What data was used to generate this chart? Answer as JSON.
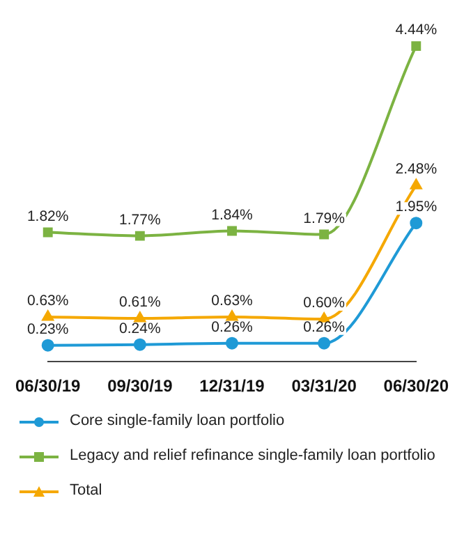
{
  "chart_data": {
    "type": "line",
    "categories": [
      "06/30/19",
      "09/30/19",
      "12/31/19",
      "03/31/20",
      "06/30/20"
    ],
    "series": [
      {
        "name": "Core single-family loan portfolio",
        "color": "#1f9ad6",
        "marker": "circle",
        "values": [
          0.23,
          0.24,
          0.26,
          0.26,
          1.95
        ],
        "value_labels": [
          "0.23%",
          "0.24%",
          "0.26%",
          "0.26%",
          "1.95%"
        ]
      },
      {
        "name": "Legacy and relief refinance single-family loan portfolio",
        "color": "#7cb342",
        "marker": "square",
        "values": [
          1.82,
          1.77,
          1.84,
          1.79,
          4.44
        ],
        "value_labels": [
          "1.82%",
          "1.77%",
          "1.84%",
          "1.79%",
          "4.44%"
        ]
      },
      {
        "name": "Total",
        "color": "#f5a800",
        "marker": "triangle",
        "values": [
          0.63,
          0.61,
          0.63,
          0.6,
          2.48
        ],
        "value_labels": [
          "0.63%",
          "0.61%",
          "0.63%",
          "0.60%",
          "2.48%"
        ]
      }
    ],
    "tick_labels": "x",
    "legend": "bottom"
  }
}
